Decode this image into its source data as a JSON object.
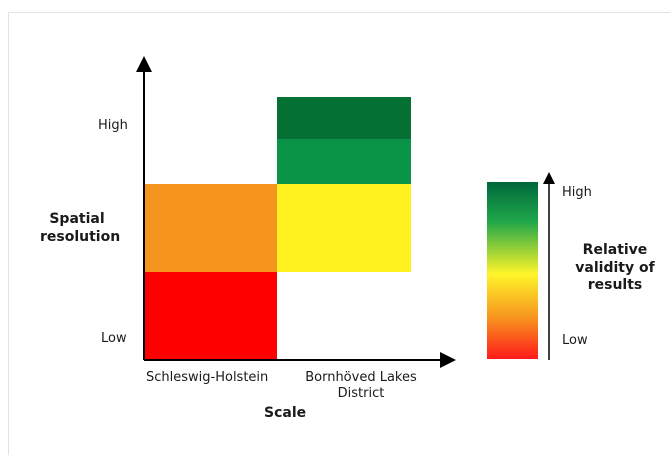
{
  "diagram": {
    "y_axis": {
      "label_line1": "Spatial",
      "label_line2": "resolution",
      "tick_high": "High",
      "tick_low": "Low"
    },
    "x_axis": {
      "label": "Scale",
      "cat1": "Schleswig-Holstein",
      "cat2_line1": "Bornhöved Lakes",
      "cat2_line2": "District"
    },
    "legend": {
      "high": "High",
      "low": "Low",
      "title_line1": "Relative",
      "title_line2": "validity of",
      "title_line3": "results"
    },
    "colors": {
      "schleswig_low": "#ff0000",
      "schleswig_mid": "#f5951e",
      "bornhoved_mid": "#fff21f",
      "bornhoved_high_lower": "#0a9447",
      "bornhoved_high_upper": "#057034",
      "legend_gradient": [
        "#00683a",
        "#1ea64a",
        "#fff52a",
        "#f7931e",
        "#ff1a1a"
      ]
    }
  }
}
